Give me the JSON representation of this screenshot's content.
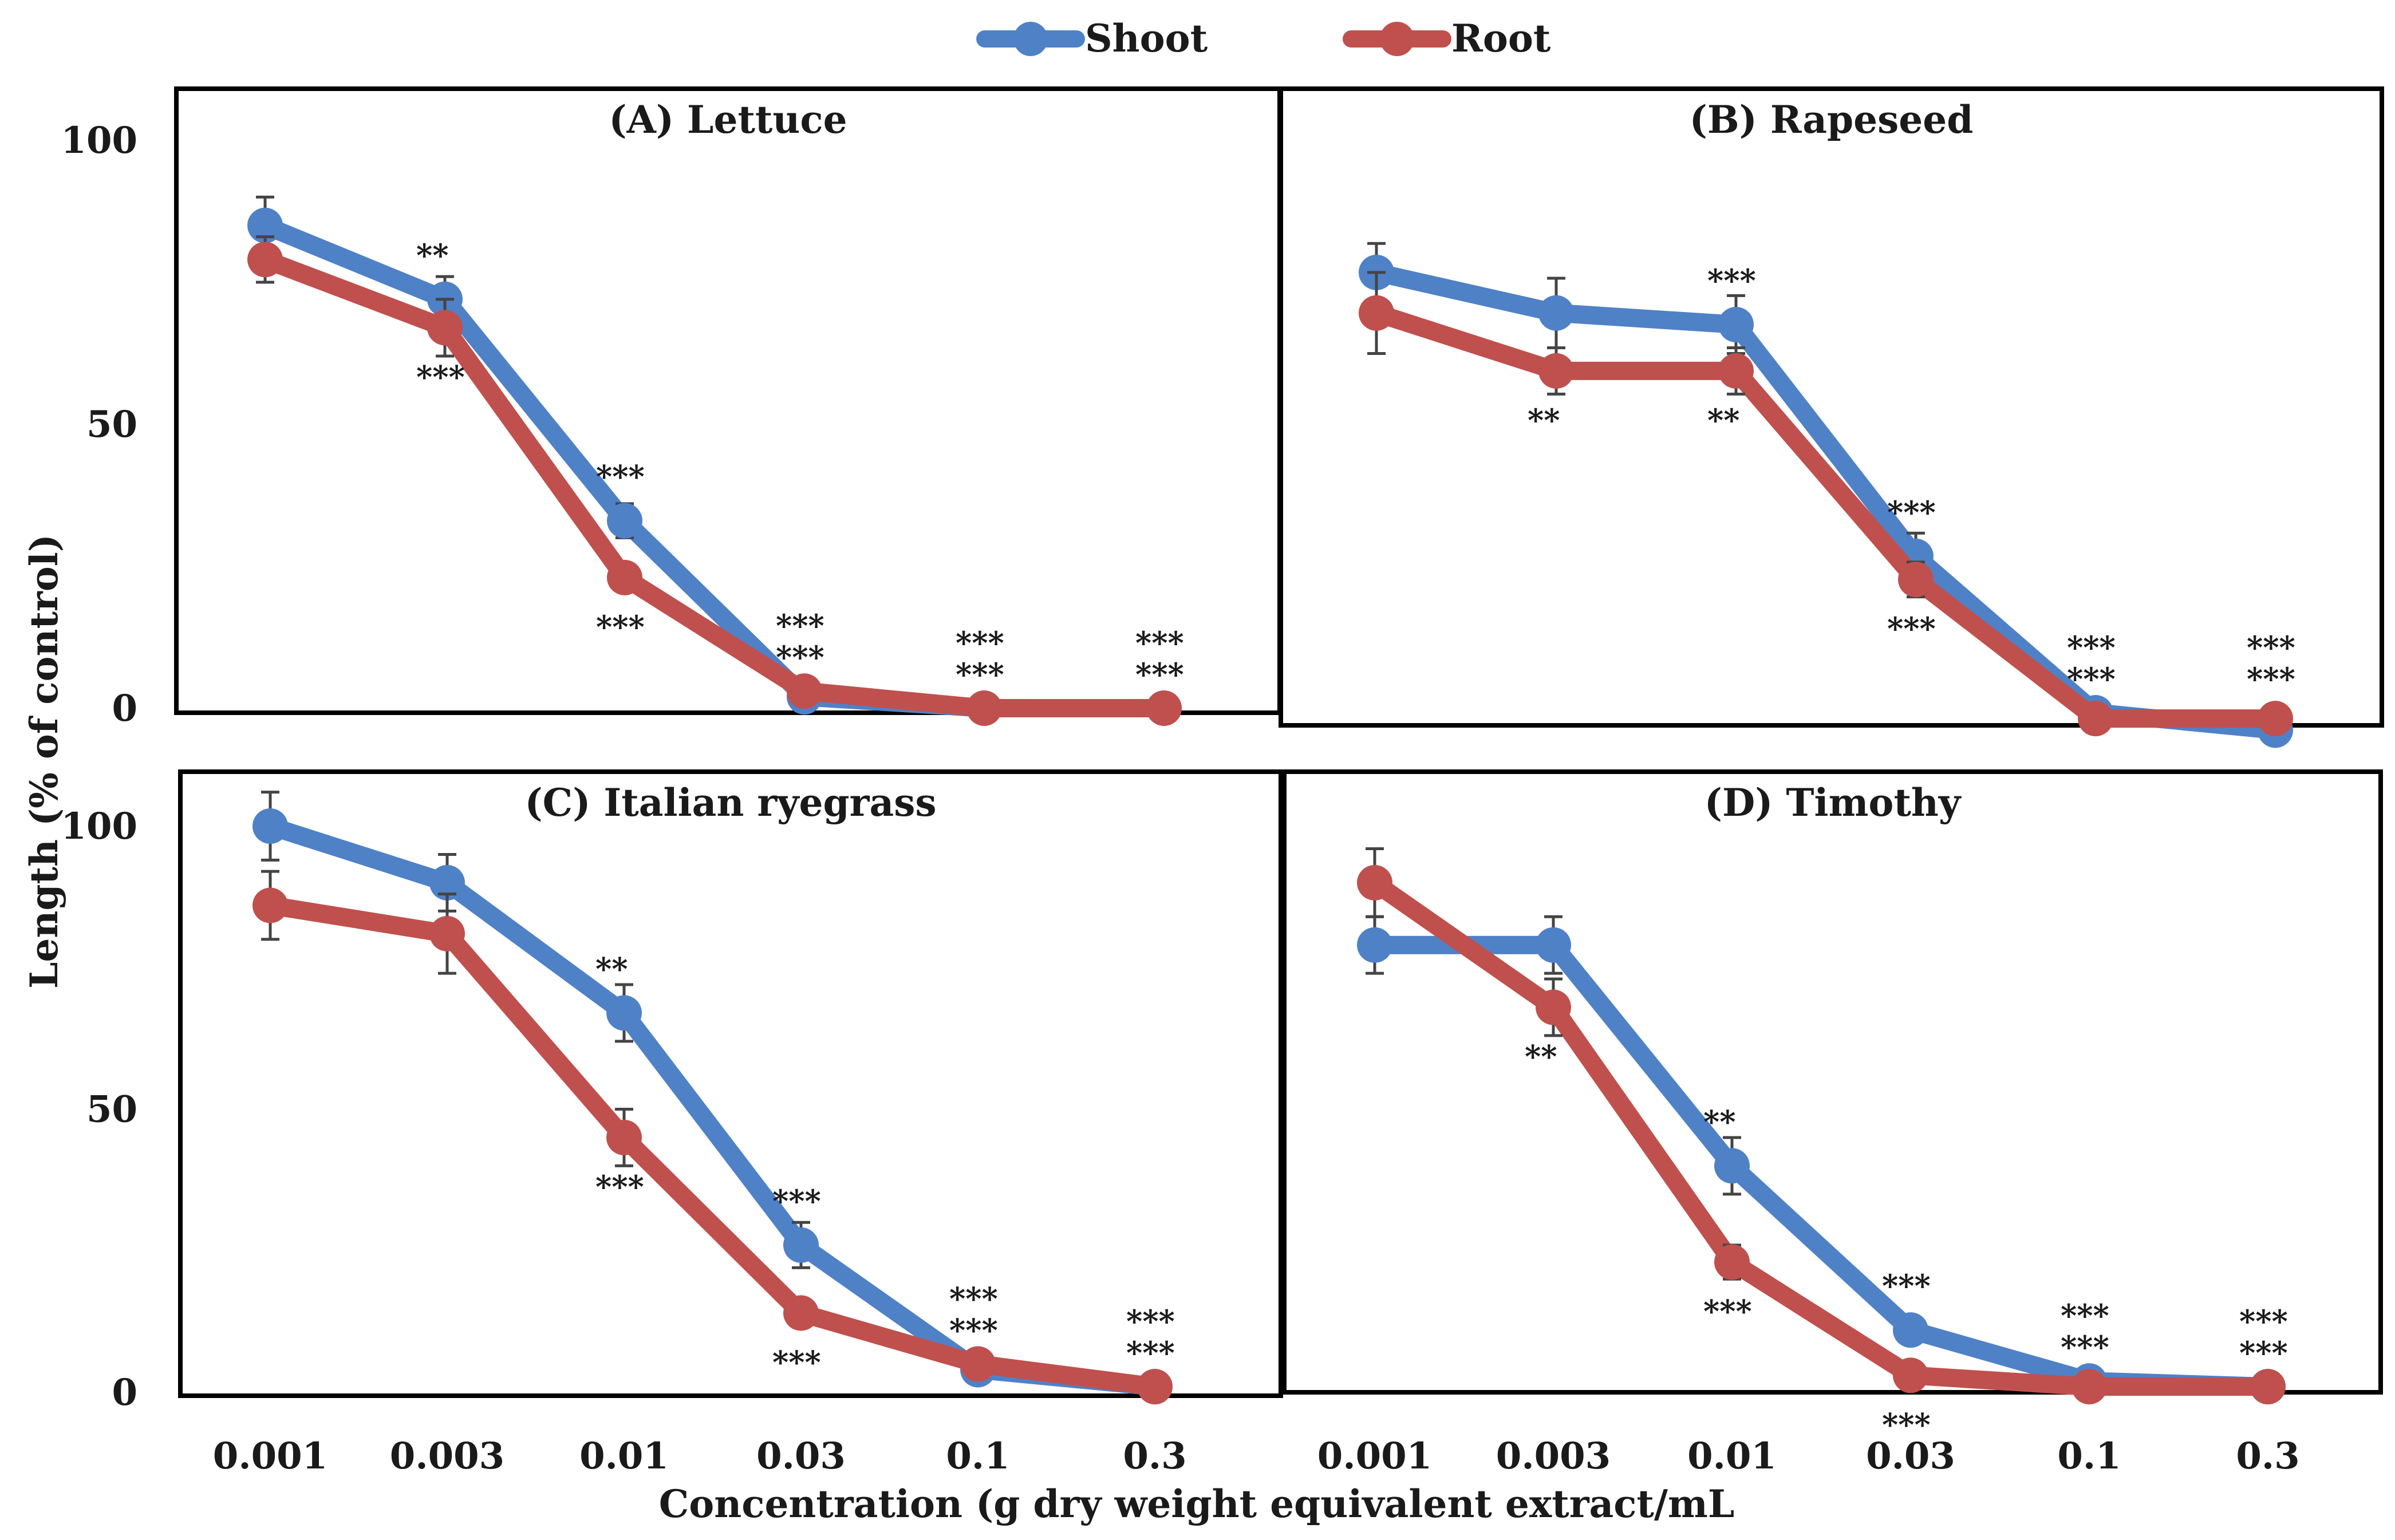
{
  "legend": [
    {
      "name": "Shoot",
      "color": "#4f81c7"
    },
    {
      "name": "Root",
      "color": "#c0504d"
    }
  ],
  "axis": {
    "ylabel": "Length (% of control)",
    "xlabel": "Concentration (g dry weight equivalent extract/mL",
    "x_categories": [
      "0.001",
      "0.003",
      "0.01",
      "0.03",
      "0.1",
      "0.3"
    ],
    "yticks": [
      "0",
      "50",
      "100"
    ],
    "ylim": [
      0,
      110
    ]
  },
  "chart_data": [
    {
      "type": "line",
      "title": "(A) Lettuce",
      "categories": [
        "0.001",
        "0.003",
        "0.01",
        "0.03",
        "0.1",
        "0.3"
      ],
      "series": [
        {
          "name": "Shoot",
          "values": [
            85,
            72,
            33,
            2,
            0,
            0
          ],
          "errors": [
            5,
            4,
            3,
            1,
            0,
            0
          ]
        },
        {
          "name": "Root",
          "values": [
            79,
            67,
            23,
            3,
            0,
            0
          ],
          "errors": [
            4,
            5,
            2,
            1,
            0,
            0
          ]
        }
      ],
      "sig_shoot": [
        "",
        "**",
        "***",
        "***",
        "***",
        "***"
      ],
      "sig_root": [
        "",
        "***",
        "***",
        "***",
        "***",
        "***"
      ]
    },
    {
      "type": "line",
      "title": "(B) Rapeseed",
      "categories": [
        "0.001",
        "0.003",
        "0.01",
        "0.03",
        "0.1",
        "0.3"
      ],
      "series": [
        {
          "name": "Shoot",
          "values": [
            76,
            69,
            67,
            27,
            0,
            -3
          ],
          "errors": [
            5,
            6,
            5,
            4,
            1,
            1
          ]
        },
        {
          "name": "Root",
          "values": [
            69,
            59,
            59,
            23,
            -1,
            -1
          ],
          "errors": [
            7,
            4,
            4,
            3,
            1,
            1
          ]
        }
      ],
      "sig_shoot": [
        "",
        "",
        "***",
        "***",
        "***",
        "***"
      ],
      "sig_root": [
        "",
        "**",
        "**",
        "***",
        "***",
        "***"
      ]
    },
    {
      "type": "line",
      "title": "(C) Italian ryegrass",
      "categories": [
        "0.001",
        "0.003",
        "0.01",
        "0.03",
        "0.1",
        "0.3"
      ],
      "series": [
        {
          "name": "Shoot",
          "values": [
            100,
            90,
            67,
            26,
            4,
            1
          ],
          "errors": [
            6,
            5,
            5,
            4,
            1,
            0
          ]
        },
        {
          "name": "Root",
          "values": [
            86,
            81,
            45,
            14,
            5,
            1
          ],
          "errors": [
            6,
            7,
            5,
            2,
            1,
            0
          ]
        }
      ],
      "sig_shoot": [
        "",
        "",
        "**",
        "***",
        "***",
        "***"
      ],
      "sig_root": [
        "",
        "",
        "***",
        "***",
        "***",
        "***"
      ]
    },
    {
      "type": "line",
      "title": "(D) Timothy",
      "categories": [
        "0.001",
        "0.003",
        "0.01",
        "0.03",
        "0.1",
        "0.3"
      ],
      "series": [
        {
          "name": "Shoot",
          "values": [
            79,
            79,
            40,
            11,
            2,
            1
          ],
          "errors": [
            5,
            5,
            5,
            2,
            1,
            0
          ]
        },
        {
          "name": "Root",
          "values": [
            90,
            68,
            23,
            3,
            1,
            1
          ],
          "errors": [
            6,
            5,
            3,
            1,
            0,
            0
          ]
        }
      ],
      "sig_shoot": [
        "",
        "",
        "**",
        "***",
        "***",
        "***"
      ],
      "sig_root": [
        "",
        "**",
        "***",
        "***",
        "***",
        "***"
      ]
    }
  ]
}
